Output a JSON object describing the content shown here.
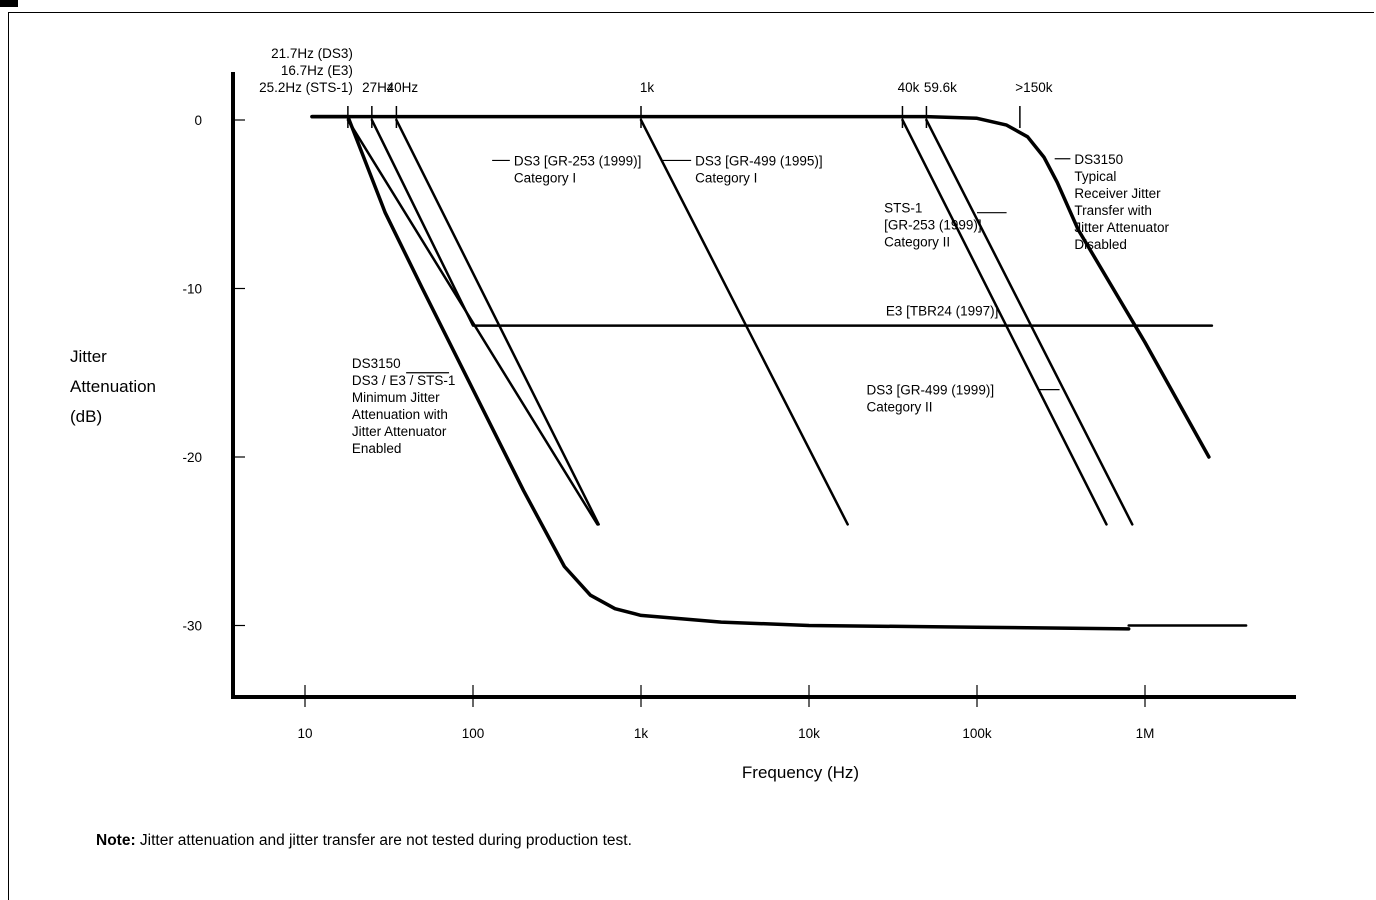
{
  "chart_data": {
    "type": "line",
    "xscale": "log",
    "xlim": [
      4,
      6000000
    ],
    "ylim": [
      -34,
      3
    ],
    "ylabel_lines": [
      "Jitter",
      "Attenuation",
      "(dB)"
    ],
    "xlabel": "Frequency (Hz)",
    "xticks": [
      {
        "value": 10,
        "label": "10"
      },
      {
        "value": 100,
        "label": "100"
      },
      {
        "value": 1000,
        "label": "1k"
      },
      {
        "value": 10000,
        "label": "10k"
      },
      {
        "value": 100000,
        "label": "100k"
      },
      {
        "value": 1000000,
        "label": "1M"
      }
    ],
    "yticks": [
      {
        "value": 0,
        "label": "0"
      },
      {
        "value": -10,
        "label": "-10"
      },
      {
        "value": -20,
        "label": "-20"
      },
      {
        "value": -30,
        "label": "-30"
      }
    ],
    "top_markers": [
      {
        "x": 18,
        "lines": [
          "21.7Hz (DS3)",
          "16.7Hz  (E3)",
          "25.2Hz (STS-1)"
        ]
      },
      {
        "x": 25,
        "lines": [
          "27Hz"
        ]
      },
      {
        "x": 35,
        "lines": [
          "40Hz"
        ]
      },
      {
        "x": 1000,
        "lines": [
          "1k"
        ]
      },
      {
        "x": 36000,
        "lines": [
          "40k"
        ]
      },
      {
        "x": 50000,
        "lines": [
          "59.6k"
        ]
      },
      {
        "x": 180000,
        "lines": [
          ">150k"
        ]
      }
    ],
    "series": [
      {
        "name": "DS3150 Minimum Jitter Attenuation",
        "width": 3.5,
        "points": [
          [
            11,
            0.2
          ],
          [
            18,
            0.2
          ],
          [
            30,
            -5.5
          ],
          [
            50,
            -10
          ],
          [
            100,
            -16
          ],
          [
            200,
            -22
          ],
          [
            350,
            -26.5
          ],
          [
            500,
            -28.2
          ],
          [
            700,
            -29
          ],
          [
            1000,
            -29.4
          ],
          [
            3000,
            -29.8
          ],
          [
            10000,
            -30
          ],
          [
            100000,
            -30.1
          ],
          [
            800000,
            -30.2
          ]
        ]
      },
      {
        "name": "DS3 GR-253 (1999) Category I",
        "width": 2.5,
        "points": [
          [
            18,
            0
          ],
          [
            550,
            -24
          ]
        ]
      },
      {
        "name": "DS3 GR-253 (1999) Category I",
        "width": 2.5,
        "points": [
          [
            25,
            0
          ],
          [
            100,
            -12.2
          ],
          [
            2500000,
            -12.2
          ]
        ]
      },
      {
        "name": "DS3 GR-253 (1999) Category I",
        "width": 2.5,
        "points": [
          [
            35,
            0
          ],
          [
            560,
            -24
          ]
        ]
      },
      {
        "name": "DS3 GR-499 (1995) Category I",
        "width": 2.5,
        "points": [
          [
            1000,
            0
          ],
          [
            17000,
            -24
          ]
        ]
      },
      {
        "name": "STS-1 GR-253 (1999) Category II",
        "width": 2.5,
        "points": [
          [
            36000,
            0
          ],
          [
            590000,
            -24
          ]
        ]
      },
      {
        "name": "DS3 GR-499 (1999) Category II",
        "width": 2.5,
        "points": [
          [
            50000,
            0
          ],
          [
            840000,
            -24
          ]
        ]
      },
      {
        "name": "DS3150 Typical Receiver Jitter Transfer",
        "width": 3.5,
        "points": [
          [
            11,
            0.2
          ],
          [
            50000,
            0.2
          ],
          [
            100000,
            0.1
          ],
          [
            150000,
            -0.3
          ],
          [
            200000,
            -1
          ],
          [
            250000,
            -2.2
          ],
          [
            300000,
            -3.7
          ],
          [
            400000,
            -6.5
          ],
          [
            1000000,
            -13.2
          ],
          [
            2400000,
            -20
          ]
        ]
      },
      {
        "name": "Floor",
        "width": 2.5,
        "points": [
          [
            800000,
            -30
          ],
          [
            4000000,
            -30
          ]
        ]
      }
    ],
    "annotations": [
      {
        "lines": [
          "DS3 [GR-253 (1999)]",
          "  Category I"
        ],
        "anchor_x": 130,
        "anchor_y": -2.4,
        "label_x": 175,
        "align": "start"
      },
      {
        "lines": [
          "DS3 [GR-499 (1995)]",
          "  Category I"
        ],
        "anchor_x": 1350,
        "anchor_y": -2.4,
        "label_x": 2100,
        "align": "start"
      },
      {
        "lines": [
          "STS-1",
          " [GR-253 (1999)]",
          "  Category II"
        ],
        "anchor_x": 150000,
        "anchor_y": -5.5,
        "label_x": 28000,
        "align": "start",
        "leader_from_x": 100000
      },
      {
        "lines": [
          "E3 [TBR24 (1997)]"
        ],
        "label_x": 62000,
        "label_y": -11.6,
        "align": "middle"
      },
      {
        "lines": [
          "DS3150",
          "DS3 / E3 / STS-1",
          "Minimum Jitter",
          "Attenuation with",
          "Jitter Attenuator",
          "Enabled"
        ],
        "anchor_x": 72,
        "anchor_y": -15,
        "label_x": 19,
        "align": "start",
        "leader_from_x": 40
      },
      {
        "lines": [
          "DS3 [GR-499 (1999)]",
          "  Category II"
        ],
        "anchor_x": 310000,
        "anchor_y": -16,
        "label_x": 22000,
        "align": "start",
        "leader_from_x": 230000
      },
      {
        "lines": [
          "DS3150",
          "  Typical",
          "   Receiver Jitter",
          "   Transfer with",
          "    Jitter Attenuator",
          "     Disabled"
        ],
        "anchor_x": 290000,
        "anchor_y": -2.3,
        "label_x": 380000,
        "align": "start"
      }
    ]
  },
  "note": {
    "label": "Note:",
    "text": " Jitter attenuation and jitter transfer are not tested during production test."
  }
}
